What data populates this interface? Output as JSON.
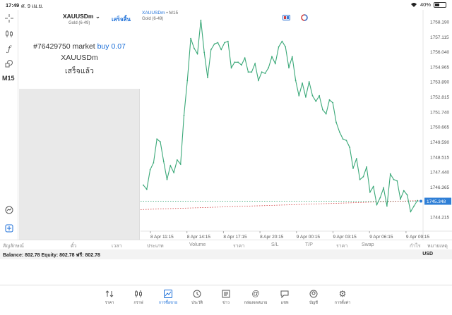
{
  "status_bar": {
    "time": "17:49",
    "date": "ศ. 9 เม.ย.",
    "battery": "40%",
    "battery_level": 0.4
  },
  "left_toolbar": {
    "timeframe": "M15"
  },
  "ticket": {
    "symbol": "XAUUSDm",
    "description": "Gold (6-49)",
    "done_button": "เสร็จสิ้น",
    "order_number": "#76429750 market",
    "order_action": "buy 0.07",
    "order_symbol": "XAUUSDm",
    "order_status": "เสร็จแล้ว"
  },
  "chart": {
    "title_symbol": "XAUUSDm",
    "title_timeframe": "• M15",
    "subtitle": "Gold (6-49)",
    "colors": {
      "line": "#3aa878",
      "current_price_bg": "#2f7fd6",
      "bid_line": "#3aa878",
      "ask_line": "#d03a3a"
    }
  },
  "chart_data": {
    "type": "line",
    "y_ticks": [
      "1758.190",
      "1757.115",
      "1756.040",
      "1754.965",
      "1753.890",
      "1752.815",
      "1751.740",
      "1750.665",
      "1749.590",
      "1748.515",
      "1747.440",
      "1746.365",
      "1744.215"
    ],
    "current_price": "1745.348",
    "x_ticks": [
      "8 Apr 11:15",
      "8 Apr 14:15",
      "8 Apr 17:15",
      "8 Apr 20:15",
      "9 Apr 00:15",
      "9 Apr 03:15",
      "9 Apr 06:15",
      "9 Apr 09:15"
    ],
    "ylim": [
      1744.215,
      1758.19
    ],
    "values": [
      1746.5,
      1746.2,
      1747.6,
      1748.1,
      1749.8,
      1749.6,
      1748.2,
      1746.9,
      1747.9,
      1747.4,
      1748.3,
      1748.0,
      1751.5,
      1754.0,
      1757.0,
      1756.3,
      1755.9,
      1758.3,
      1756.0,
      1754.2,
      1756.2,
      1756.6,
      1756.7,
      1756.2,
      1756.7,
      1756.8,
      1754.9,
      1755.3,
      1755.3,
      1755.1,
      1755.6,
      1754.6,
      1754.6,
      1755.2,
      1754.0,
      1754.6,
      1754.5,
      1754.9,
      1755.7,
      1755.2,
      1756.4,
      1756.8,
      1756.4,
      1754.9,
      1755.7,
      1754.0,
      1752.9,
      1753.8,
      1752.8,
      1753.9,
      1752.9,
      1752.5,
      1752.9,
      1751.9,
      1751.6,
      1752.6,
      1752.4,
      1751.0,
      1750.3,
      1749.8,
      1749.7,
      1749.2,
      1747.7,
      1748.4,
      1746.9,
      1747.1,
      1747.8,
      1746.0,
      1746.4,
      1745.1,
      1745.6,
      1746.3,
      1745.0,
      1747.3,
      1746.9,
      1746.8,
      1745.5,
      1746.1,
      1745.8,
      1744.6,
      1745.0,
      1745.4
    ]
  },
  "table_headers": [
    "สัญลักษณ์",
    "ตั๋ว",
    "เวลา",
    "ประเภท",
    "Volume",
    "ราคา",
    "S/L",
    "T/P",
    "ราคา",
    "Swap",
    "กำไร",
    "หมายเหตุ"
  ],
  "balance": {
    "text": "Balance: 802.78 Equity: 802.78 ฟรี: 802.78",
    "currency": "USD"
  },
  "tabs": [
    {
      "label": "ราคา",
      "icon": "quotes-icon"
    },
    {
      "label": "กราฟ",
      "icon": "chart-icon"
    },
    {
      "label": "การซื้อขาย",
      "icon": "trade-icon"
    },
    {
      "label": "ประวัติ",
      "icon": "history-icon"
    },
    {
      "label": "ข่าว",
      "icon": "news-icon"
    },
    {
      "label": "กล่องจดหมาย",
      "icon": "mailbox-icon"
    },
    {
      "label": "แชท",
      "icon": "chat-icon"
    },
    {
      "label": "บัญชี",
      "icon": "account-icon"
    },
    {
      "label": "การตั้งค่า",
      "icon": "settings-icon"
    }
  ]
}
